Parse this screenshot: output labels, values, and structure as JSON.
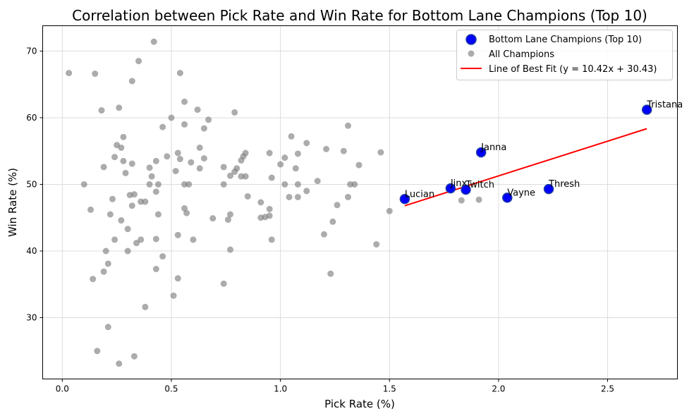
{
  "chart_data": {
    "type": "scatter",
    "title": "Correlation between Pick Rate and Win Rate for Bottom Lane Champions (Top 10)",
    "xlabel": "Pick Rate (%)",
    "ylabel": "Win Rate (%)",
    "xlim": [
      -0.09,
      2.82
    ],
    "ylim": [
      20.8,
      73.8
    ],
    "xticks": [
      0.0,
      0.5,
      1.0,
      1.5,
      2.0,
      2.5
    ],
    "xtick_labels": [
      "0.0",
      "0.5",
      "1.0",
      "1.5",
      "2.0",
      "2.5"
    ],
    "yticks": [
      30,
      40,
      50,
      60,
      70
    ],
    "ytick_labels": [
      "30",
      "40",
      "50",
      "60",
      "70"
    ],
    "grid": true,
    "legend_position": "top-right",
    "colors": {
      "highlight": "#0000ff",
      "highlight_edge": "#1f3fa0",
      "all": "#808080",
      "fit": "#ff0000",
      "grid": "#dcdcdc"
    },
    "series": [
      {
        "name": "Bottom Lane Champions (Top 10)",
        "marker": "circle-large",
        "points": [
          {
            "label": "Lucian",
            "x": 1.57,
            "y": 47.8
          },
          {
            "label": "Jinx",
            "x": 1.78,
            "y": 49.4
          },
          {
            "label": "Twitch",
            "x": 1.85,
            "y": 49.2
          },
          {
            "label": "Janna",
            "x": 1.92,
            "y": 54.8
          },
          {
            "label": "Vayne",
            "x": 2.04,
            "y": 48.0
          },
          {
            "label": "Thresh",
            "x": 2.23,
            "y": 49.3
          },
          {
            "label": "Tristana",
            "x": 2.68,
            "y": 61.2
          }
        ]
      },
      {
        "name": "All Champions",
        "marker": "circle-small",
        "points": [
          [
            0.03,
            66.7
          ],
          [
            0.15,
            66.6
          ],
          [
            0.18,
            61.1
          ],
          [
            0.26,
            61.5
          ],
          [
            0.28,
            57.1
          ],
          [
            0.25,
            55.9
          ],
          [
            0.27,
            55.5
          ],
          [
            0.24,
            54.1
          ],
          [
            0.28,
            53.5
          ],
          [
            0.32,
            53.1
          ],
          [
            0.19,
            52.6
          ],
          [
            0.29,
            51.7
          ],
          [
            0.1,
            50.0
          ],
          [
            0.31,
            48.4
          ],
          [
            0.33,
            48.5
          ],
          [
            0.23,
            47.8
          ],
          [
            0.32,
            46.8
          ],
          [
            0.13,
            46.2
          ],
          [
            0.22,
            45.5
          ],
          [
            0.27,
            44.6
          ],
          [
            0.3,
            43.3
          ],
          [
            0.24,
            41.7
          ],
          [
            0.2,
            40.0
          ],
          [
            0.3,
            40.0
          ],
          [
            0.21,
            38.1
          ],
          [
            0.19,
            36.9
          ],
          [
            0.14,
            35.8
          ],
          [
            0.21,
            28.6
          ],
          [
            0.16,
            25.0
          ],
          [
            0.26,
            23.1
          ],
          [
            0.33,
            24.2
          ],
          [
            0.42,
            71.4
          ],
          [
            0.35,
            68.5
          ],
          [
            0.32,
            65.5
          ],
          [
            0.46,
            58.6
          ],
          [
            0.43,
            53.5
          ],
          [
            0.4,
            52.5
          ],
          [
            0.41,
            51.2
          ],
          [
            0.4,
            50.0
          ],
          [
            0.44,
            50.0
          ],
          [
            0.43,
            48.9
          ],
          [
            0.36,
            47.4
          ],
          [
            0.38,
            47.4
          ],
          [
            0.44,
            45.5
          ],
          [
            0.36,
            41.7
          ],
          [
            0.34,
            41.2
          ],
          [
            0.43,
            41.8
          ],
          [
            0.46,
            39.2
          ],
          [
            0.43,
            37.3
          ],
          [
            0.38,
            31.6
          ],
          [
            0.54,
            66.7
          ],
          [
            0.56,
            62.4
          ],
          [
            0.62,
            61.2
          ],
          [
            0.5,
            60.0
          ],
          [
            0.67,
            59.7
          ],
          [
            0.56,
            59.0
          ],
          [
            0.65,
            58.4
          ],
          [
            0.48,
            54.2
          ],
          [
            0.53,
            54.7
          ],
          [
            0.63,
            55.5
          ],
          [
            0.54,
            53.8
          ],
          [
            0.59,
            53.3
          ],
          [
            0.65,
            53.9
          ],
          [
            0.63,
            52.4
          ],
          [
            0.52,
            52.0
          ],
          [
            0.56,
            50.0
          ],
          [
            0.58,
            50.0
          ],
          [
            0.56,
            46.4
          ],
          [
            0.57,
            45.7
          ],
          [
            0.53,
            42.4
          ],
          [
            0.6,
            41.7
          ],
          [
            0.53,
            35.9
          ],
          [
            0.51,
            33.3
          ],
          [
            0.79,
            60.8
          ],
          [
            0.74,
            52.6
          ],
          [
            0.8,
            52.4
          ],
          [
            0.79,
            51.9
          ],
          [
            0.77,
            51.3
          ],
          [
            0.82,
            51.2
          ],
          [
            0.84,
            51.2
          ],
          [
            0.83,
            54.2
          ],
          [
            0.84,
            54.7
          ],
          [
            0.82,
            53.6
          ],
          [
            0.74,
            50.0
          ],
          [
            0.85,
            48.2
          ],
          [
            0.77,
            45.5
          ],
          [
            0.69,
            44.9
          ],
          [
            0.76,
            44.7
          ],
          [
            0.77,
            40.2
          ],
          [
            0.74,
            35.1
          ],
          [
            0.95,
            54.7
          ],
          [
            0.96,
            51.0
          ],
          [
            0.91,
            47.3
          ],
          [
            0.95,
            46.3
          ],
          [
            0.93,
            45.1
          ],
          [
            0.95,
            45.3
          ],
          [
            0.91,
            45.0
          ],
          [
            0.96,
            41.7
          ],
          [
            1.05,
            57.2
          ],
          [
            1.0,
            53.0
          ],
          [
            1.02,
            54.0
          ],
          [
            1.08,
            54.6
          ],
          [
            1.07,
            52.4
          ],
          [
            1.02,
            50.0
          ],
          [
            1.08,
            50.0
          ],
          [
            1.12,
            49.0
          ],
          [
            1.04,
            48.1
          ],
          [
            1.08,
            48.1
          ],
          [
            1.12,
            56.2
          ],
          [
            1.21,
            55.3
          ],
          [
            1.29,
            55.0
          ],
          [
            1.31,
            58.8
          ],
          [
            1.36,
            52.9
          ],
          [
            1.17,
            50.5
          ],
          [
            1.32,
            50.0
          ],
          [
            1.34,
            50.0
          ],
          [
            1.31,
            48.1
          ],
          [
            1.26,
            46.9
          ],
          [
            1.24,
            44.4
          ],
          [
            1.2,
            42.5
          ],
          [
            1.23,
            36.6
          ],
          [
            1.46,
            54.8
          ],
          [
            1.5,
            46.0
          ],
          [
            1.44,
            41.0
          ],
          [
            1.83,
            47.6
          ],
          [
            1.91,
            47.7
          ]
        ]
      }
    ],
    "fit_line": {
      "name": "Line of Best Fit (y = 10.42x + 30.43)",
      "slope": 10.42,
      "intercept": 30.43,
      "x_range": [
        1.57,
        2.68
      ]
    }
  }
}
